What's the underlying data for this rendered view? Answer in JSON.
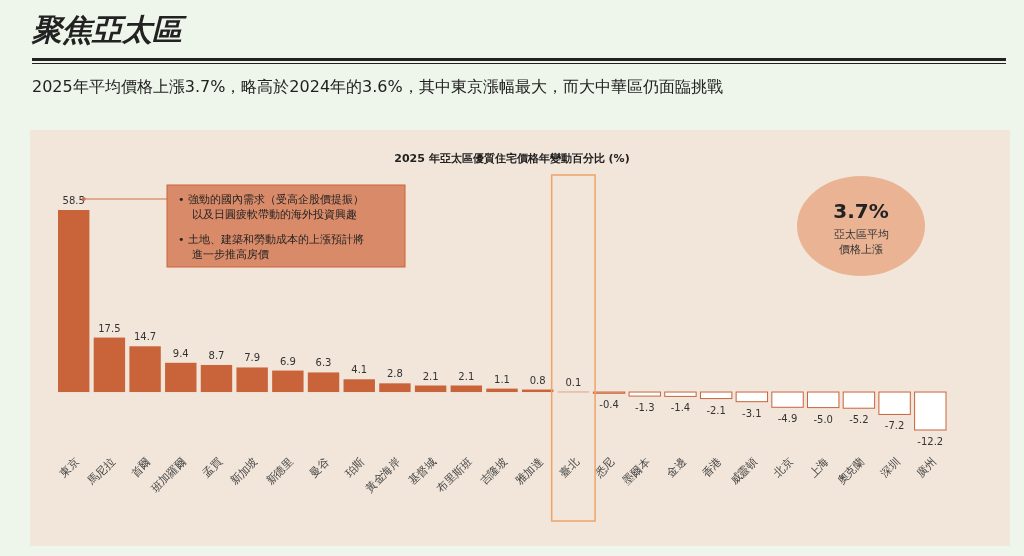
{
  "chart_data": {
    "type": "bar",
    "title": "聚焦亞太區",
    "subtitle": "2025年平均價格上漲3.7%，略高於2024年的3.6%，其中東京漲幅最大，而大中華區仍面臨挑戰",
    "annotations": [
      "2025 年亞太區優質住宅價格年變動百分比 (%)",
      "• 強勁的國內需求（受高企股價提振）以及日圓疲軟帶動的海外投資興趣",
      "• 土地、建築和勞動成本的上漲預計將進一步推高房價",
      "3.7%",
      "亞太區平均價格上漲"
    ],
    "categories": [
      "東京",
      "馬尼拉",
      "首爾",
      "班加羅爾",
      "孟買",
      "新加坡",
      "新德里",
      "曼谷",
      "珀斯",
      "黃金海岸",
      "基督城",
      "布里斯班",
      "吉隆坡",
      "雅加達",
      "臺北",
      "悉尼",
      "墨爾本",
      "金邊",
      "香港",
      "威靈頓",
      "北京",
      "上海",
      "奧克蘭",
      "深圳",
      "廣州"
    ],
    "values": [
      58.5,
      17.5,
      14.7,
      9.4,
      8.7,
      7.9,
      6.9,
      6.3,
      4.1,
      2.8,
      2.1,
      2.1,
      1.1,
      0.8,
      0.1,
      -0.4,
      -1.3,
      -1.4,
      -2.1,
      -3.1,
      -4.9,
      -5.0,
      -5.2,
      -7.2,
      -12.2
    ],
    "colors": [
      "#c8633a",
      "#c8633a",
      "#c8633a",
      "#c8633a",
      "#c8633a",
      "#c8633a",
      "#c8633a",
      "#c8633a",
      "#c8633a",
      "#c8633a",
      "#c8633a",
      "#c8633a",
      "#c8633a",
      "#c8633a",
      "#c8633a",
      "#ffffff",
      "#ffffff",
      "#ffffff",
      "#ffffff",
      "#ffffff",
      "#ffffff",
      "#ffffff",
      "#ffffff",
      "#ffffff",
      "#ffffff"
    ],
    "value_labels": [
      "58.5",
      "17.5",
      "14.7",
      "9.4",
      "8.7",
      "7.9",
      "6.9",
      "6.3",
      "4.1",
      "2.8",
      "2.1",
      "2.1",
      "1.1",
      "0.8",
      "0.1",
      "-0.4",
      "-1.3",
      "-1.4",
      "-2.1",
      "-3.1",
      "-4.9",
      "-5.0",
      "-5.2",
      "-7.2",
      "-12.2"
    ]
  }
}
